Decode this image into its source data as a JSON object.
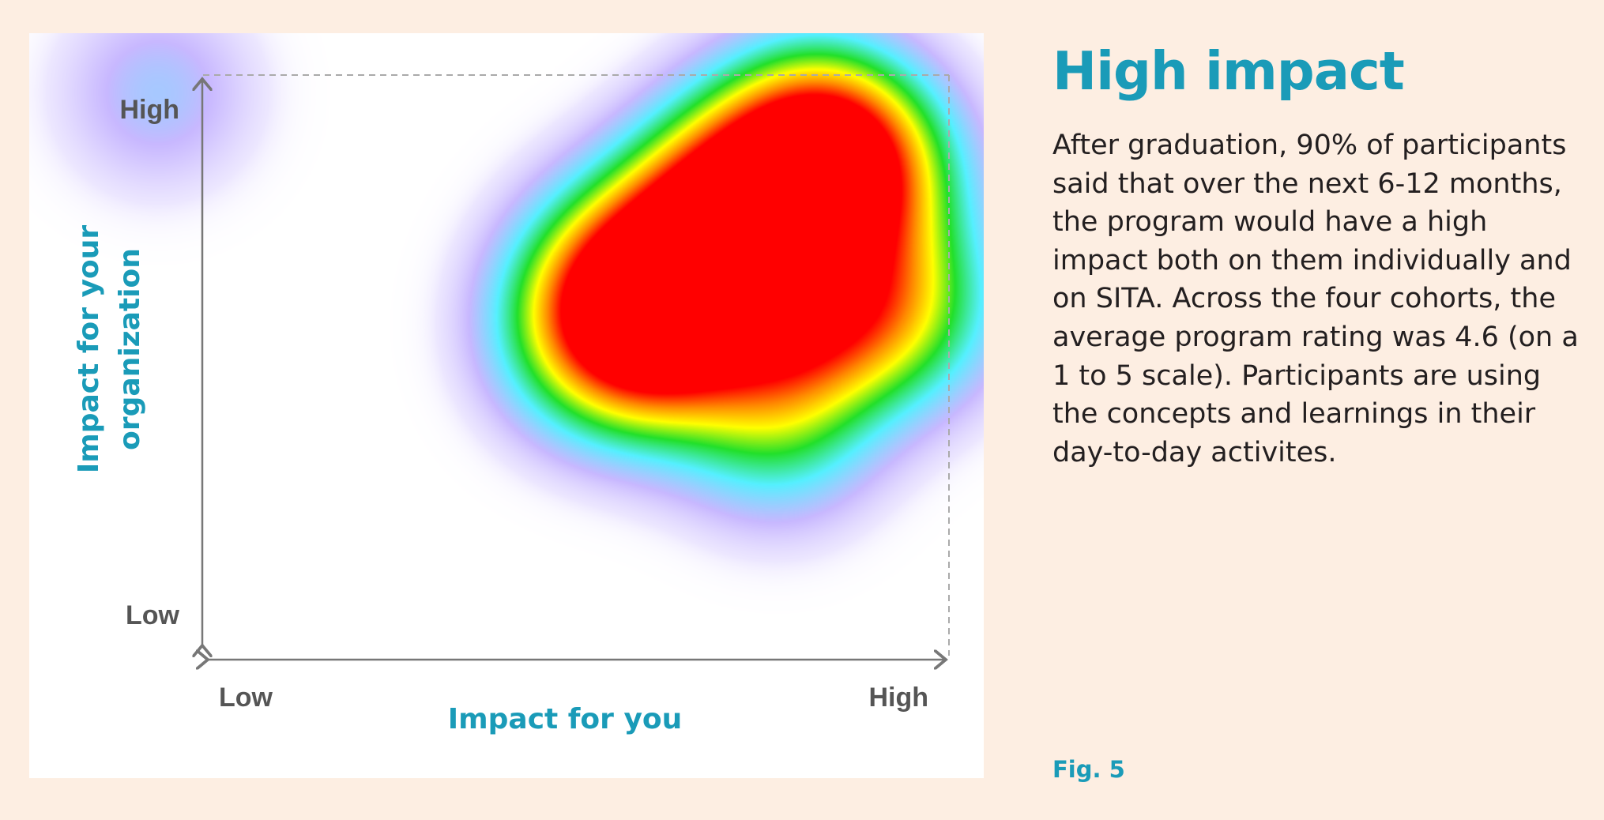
{
  "heading": "High impact",
  "body": "After graduation, 90% of participants said that over the next 6-12 months, the program would have a high impact both on them individually and on SITA. Across the four cohorts, the average program rating was 4.6 (on a 1 to 5 scale). Participants are using the concepts and learnings in their day-to-day activites.",
  "figure_label": "Fig. 5",
  "chart_data": {
    "type": "heatmap",
    "xlabel": "Impact for you",
    "ylabel_lines": [
      "Impact for your",
      "organization"
    ],
    "x_ticks": [
      "Low",
      "High"
    ],
    "y_ticks": [
      "High",
      "Low"
    ],
    "xlim": [
      0,
      1
    ],
    "ylim": [
      0,
      1
    ],
    "grid": false,
    "colormap": [
      "#ffffff",
      "#c8b8ff",
      "#55f0ff",
      "#22e02a",
      "#ffff00",
      "#ff8800",
      "#ff0000"
    ],
    "density_peaks": [
      {
        "x": 0.72,
        "y": 0.78,
        "intensity": 1.0
      },
      {
        "x": 0.82,
        "y": 0.88,
        "intensity": 0.95
      },
      {
        "x": 0.66,
        "y": 0.68,
        "intensity": 0.9
      },
      {
        "x": 0.56,
        "y": 0.64,
        "intensity": 0.7
      },
      {
        "x": 0.52,
        "y": 0.55,
        "intensity": 0.5
      },
      {
        "x": 0.62,
        "y": 0.53,
        "intensity": 0.65
      },
      {
        "x": 0.8,
        "y": 0.58,
        "intensity": 0.7
      },
      {
        "x": 0.93,
        "y": 0.6,
        "intensity": 0.6
      },
      {
        "x": 0.88,
        "y": 0.82,
        "intensity": 0.7
      },
      {
        "x": 0.77,
        "y": 0.4,
        "intensity": 0.4
      },
      {
        "x": -0.06,
        "y": 0.97,
        "intensity": 0.2
      }
    ]
  }
}
